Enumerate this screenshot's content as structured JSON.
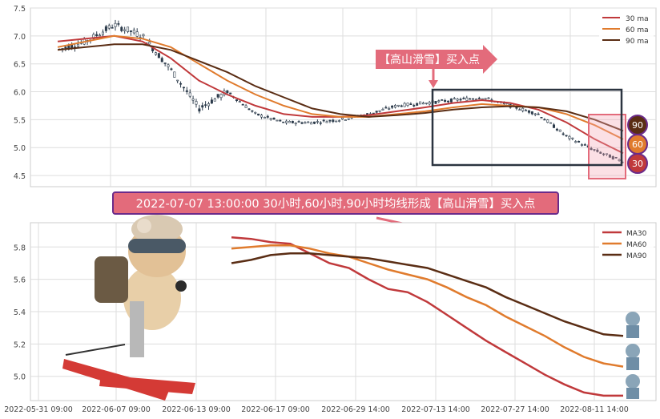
{
  "colors": {
    "ma30": "#c0393b",
    "ma60": "#e07b2d",
    "ma90": "#5a2d14",
    "candle": "#2b3a4a",
    "accent_pink": "#e36b7b",
    "banner_border": "#6b2b8a",
    "box": "#2b3440",
    "grid": "#dddddd"
  },
  "annotation": {
    "callout_label": "【高山滑雪】买入点",
    "banner_text": "2022-07-07 13:00:00 30小时,60小时,90小时均线形成【高山滑雪】买入点"
  },
  "badges": [
    "90",
    "60",
    "30"
  ],
  "chart_data": [
    {
      "type": "line",
      "name": "price-with-moving-averages",
      "ylim": [
        4.3,
        7.5
      ],
      "yticks": [
        4.5,
        5.0,
        5.5,
        6.0,
        6.5,
        7.0,
        7.5
      ],
      "legend_position": "top-right",
      "grid": true,
      "x": [
        0,
        5,
        10,
        15,
        20,
        25,
        30,
        35,
        40,
        45,
        50,
        55,
        60,
        65,
        70,
        75,
        80,
        85,
        90,
        95,
        100
      ],
      "price": [
        6.75,
        6.9,
        7.2,
        7.0,
        6.4,
        5.7,
        6.0,
        5.6,
        5.45,
        5.45,
        5.5,
        5.6,
        5.75,
        5.8,
        5.85,
        5.9,
        5.75,
        5.6,
        5.2,
        4.95,
        4.75
      ],
      "series": [
        {
          "name": "30 ma",
          "values": [
            6.9,
            6.95,
            7.0,
            6.9,
            6.6,
            6.2,
            5.95,
            5.75,
            5.6,
            5.55,
            5.55,
            5.58,
            5.65,
            5.72,
            5.8,
            5.85,
            5.8,
            5.68,
            5.45,
            5.15,
            4.9
          ]
        },
        {
          "name": "60 ma",
          "values": [
            6.8,
            6.9,
            7.0,
            6.95,
            6.8,
            6.5,
            6.2,
            5.95,
            5.75,
            5.6,
            5.55,
            5.55,
            5.6,
            5.65,
            5.72,
            5.78,
            5.75,
            5.72,
            5.6,
            5.4,
            5.15
          ]
        },
        {
          "name": "90 ma",
          "values": [
            6.75,
            6.8,
            6.85,
            6.85,
            6.75,
            6.55,
            6.35,
            6.1,
            5.9,
            5.7,
            5.6,
            5.55,
            5.58,
            5.62,
            5.68,
            5.72,
            5.74,
            5.72,
            5.65,
            5.5,
            5.3
          ]
        }
      ]
    },
    {
      "type": "line",
      "name": "moving-averages-zoom",
      "ylim": [
        4.85,
        5.95
      ],
      "yticks": [
        5.0,
        5.2,
        5.4,
        5.6,
        5.8
      ],
      "legend_position": "top-right",
      "grid": true,
      "xticks": [
        "2022-05-31 09:00",
        "2022-06-07 09:00",
        "2022-06-13 09:00",
        "2022-06-17 09:00",
        "2022-06-29 14:00",
        "2022-07-13 14:00",
        "2022-07-27 14:00",
        "2022-08-11 14:00"
      ],
      "x": [
        0,
        5,
        10,
        15,
        20,
        25,
        30,
        35,
        40,
        45,
        50,
        55,
        60,
        65,
        70,
        75,
        80,
        85,
        90,
        95,
        100
      ],
      "series": [
        {
          "name": "MA30",
          "values": [
            5.86,
            5.85,
            5.83,
            5.82,
            5.76,
            5.7,
            5.67,
            5.6,
            5.54,
            5.52,
            5.46,
            5.38,
            5.3,
            5.22,
            5.15,
            5.08,
            5.01,
            4.95,
            4.9,
            4.88,
            4.88
          ]
        },
        {
          "name": "MA60",
          "values": [
            5.79,
            5.8,
            5.81,
            5.81,
            5.79,
            5.76,
            5.74,
            5.7,
            5.66,
            5.63,
            5.6,
            5.55,
            5.49,
            5.44,
            5.37,
            5.31,
            5.25,
            5.18,
            5.12,
            5.08,
            5.06
          ]
        },
        {
          "name": "MA90",
          "values": [
            5.7,
            5.72,
            5.75,
            5.76,
            5.76,
            5.75,
            5.74,
            5.73,
            5.71,
            5.69,
            5.67,
            5.63,
            5.59,
            5.55,
            5.49,
            5.44,
            5.39,
            5.34,
            5.3,
            5.26,
            5.25
          ]
        }
      ]
    }
  ]
}
